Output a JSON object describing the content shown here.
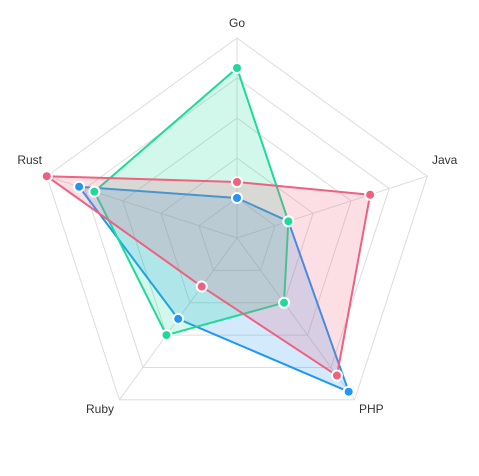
{
  "chart_data": {
    "type": "radar",
    "axes": [
      "Go",
      "Java",
      "PHP",
      "Ruby",
      "Rust"
    ],
    "max": 100,
    "grid_levels": 5,
    "series": [
      {
        "values": [
          20,
          27,
          95,
          50,
          83
        ],
        "color": "#2196f3"
      },
      {
        "values": [
          85,
          27,
          40,
          60,
          75
        ],
        "color": "#1fd99a"
      },
      {
        "values": [
          28,
          70,
          85,
          30,
          100
        ],
        "color": "#f0607f"
      }
    ]
  }
}
